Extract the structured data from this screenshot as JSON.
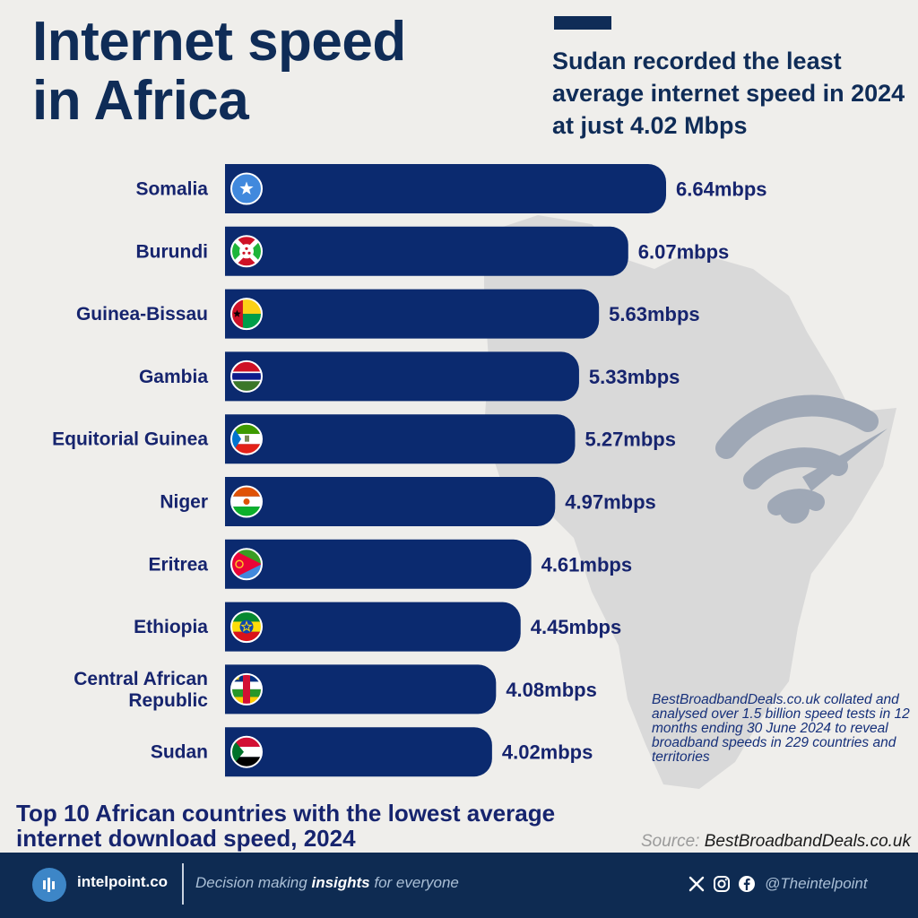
{
  "title": "Internet speed in Africa",
  "title_lines": [
    "Internet speed",
    "in Africa"
  ],
  "subtitle": "Sudan recorded the least average internet speed in 2024 at just 4.02 Mbps",
  "note": "BestBroadbandDeals.co.uk collated and analysed over 1.5 billion speed tests in 12 months ending 30 June 2024 to reveal broadband speeds in 229 countries and territories",
  "caption": "Top 10 African countries with the lowest average internet download speed, 2024",
  "source": {
    "prefix": "Source:",
    "name": "BestBroadbandDeals.co.uk"
  },
  "footer": {
    "brand": "intelpoint.co",
    "tagline_pre": "Decision making",
    "tagline_bold": "insights",
    "tagline_post": "for everyone",
    "handle": "@Theintelpoint",
    "icons": [
      "x-icon",
      "instagram-icon",
      "facebook-icon"
    ]
  },
  "colors": {
    "bar": "#0b2a6f",
    "text": "#16246e",
    "title": "#0f2c57",
    "background": "#efeeeb",
    "footer": "#0e2b52"
  },
  "chart_data": {
    "type": "bar",
    "orientation": "horizontal",
    "categories": [
      "Somalia",
      "Burundi",
      "Guinea-Bissau",
      "Gambia",
      "Equitorial Guinea",
      "Niger",
      "Eritrea",
      "Ethiopia",
      "Central African Republic",
      "Sudan"
    ],
    "category_lines": [
      [
        "Somalia"
      ],
      [
        "Burundi"
      ],
      [
        "Guinea-Bissau"
      ],
      [
        "Gambia"
      ],
      [
        "Equitorial Guinea"
      ],
      [
        "Niger"
      ],
      [
        "Eritrea"
      ],
      [
        "Ethiopia"
      ],
      [
        "Central African",
        "Republic"
      ],
      [
        "Sudan"
      ]
    ],
    "values": [
      6.64,
      6.07,
      5.63,
      5.33,
      5.27,
      4.97,
      4.61,
      4.45,
      4.08,
      4.02
    ],
    "value_labels": [
      "6.64mbps",
      "6.07mbps",
      "5.63mbps",
      "5.33mbps",
      "5.27mbps",
      "4.97mbps",
      "4.61mbps",
      "4.45mbps",
      "4.08mbps",
      "4.02mbps"
    ],
    "flags": [
      "somalia-flag-icon",
      "burundi-flag-icon",
      "guinea-bissau-flag-icon",
      "gambia-flag-icon",
      "equatorial-guinea-flag-icon",
      "niger-flag-icon",
      "eritrea-flag-icon",
      "ethiopia-flag-icon",
      "central-african-republic-flag-icon",
      "sudan-flag-icon"
    ],
    "unit": "mbps",
    "xlim": [
      0,
      6.64
    ],
    "grid": false
  }
}
